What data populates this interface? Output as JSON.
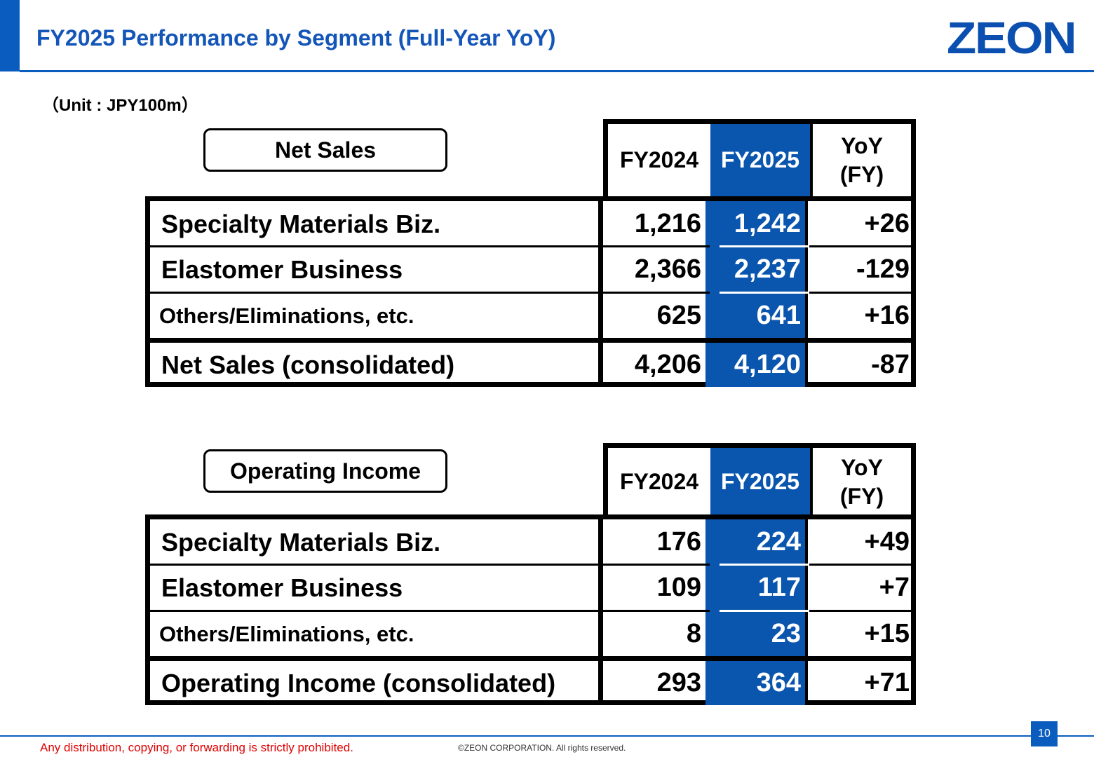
{
  "header": {
    "title": "FY2025 Performance by Segment (Full-Year YoY)",
    "logo": "ZEON"
  },
  "unit": "（Unit : JPY100m）",
  "columns": {
    "fy2024": "FY2024",
    "fy2025": "FY2025",
    "yoy_line1": "YoY",
    "yoy_line2": "(FY)"
  },
  "net_sales": {
    "label": "Net Sales",
    "rows": [
      {
        "label": "Specialty Materials Biz.",
        "fy2024": "1,216",
        "fy2025": "1,242",
        "yoy": "+26"
      },
      {
        "label": "Elastomer Business",
        "fy2024": "2,366",
        "fy2025": "2,237",
        "yoy": "-129"
      },
      {
        "label": "Others/Eliminations, etc.",
        "fy2024": "625",
        "fy2025": "641",
        "yoy": "+16"
      },
      {
        "label": "Net Sales (consolidated)",
        "fy2024": "4,206",
        "fy2025": "4,120",
        "yoy": "-87"
      }
    ]
  },
  "operating_income": {
    "label": "Operating Income",
    "rows": [
      {
        "label": "Specialty Materials Biz.",
        "fy2024": "176",
        "fy2025": "224",
        "yoy": "+49"
      },
      {
        "label": "Elastomer Business",
        "fy2024": "109",
        "fy2025": "117",
        "yoy": "+7"
      },
      {
        "label": "Others/Eliminations, etc.",
        "fy2024": "8",
        "fy2025": "23",
        "yoy": "+15"
      },
      {
        "label": "Operating Income (consolidated)",
        "fy2024": "293",
        "fy2025": "364",
        "yoy": "+71"
      }
    ]
  },
  "footer": {
    "page_number": "10",
    "notice": "Any distribution, copying, or forwarding is strictly prohibited.",
    "copyright": "©ZEON CORPORATION. All rights reserved."
  },
  "colors": {
    "accent": "#0a5dbf",
    "highlight_column": "#0a55ad",
    "notice_text": "#e00000"
  }
}
